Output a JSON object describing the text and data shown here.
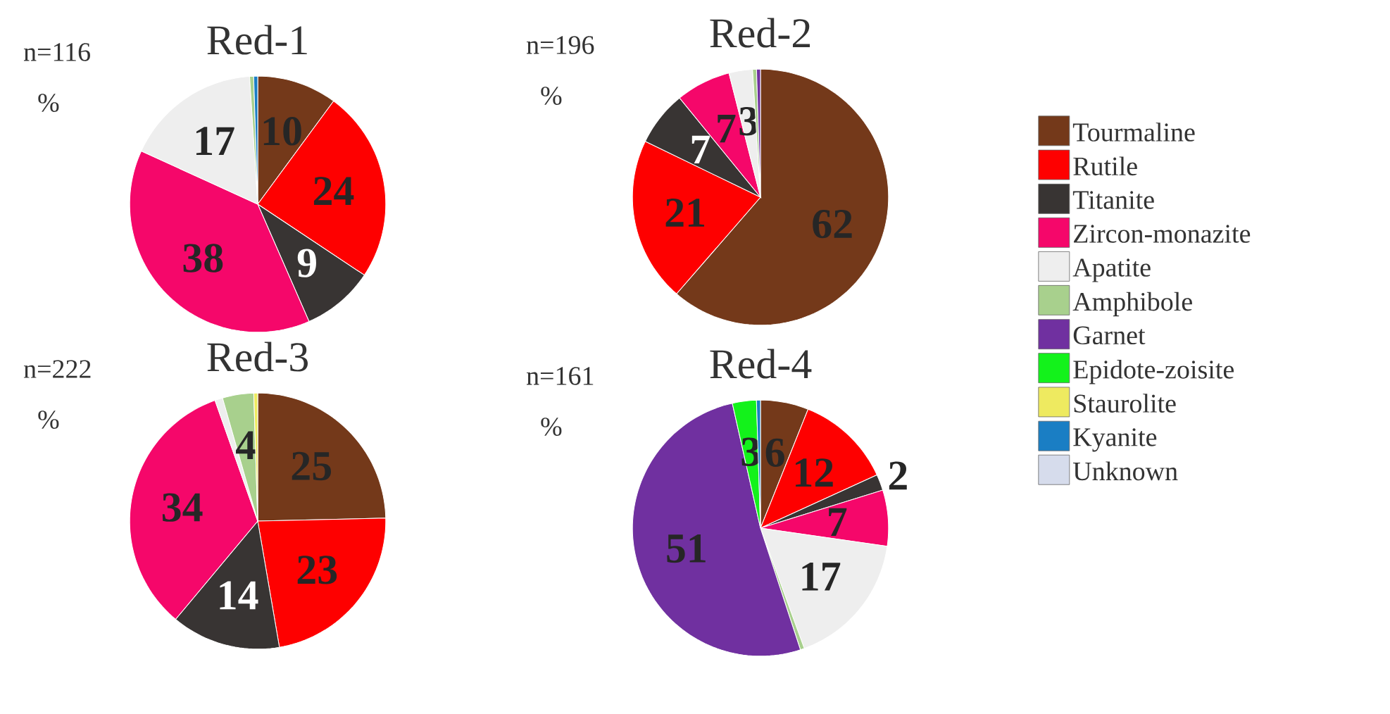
{
  "chart_data": [
    {
      "type": "pie",
      "title": "Red-1",
      "annotations": [
        "n=116",
        "%"
      ],
      "categories": [
        null,
        null,
        null,
        null,
        null,
        null,
        null,
        null,
        null,
        null,
        null
      ],
      "values": [
        10,
        24,
        9,
        38,
        17,
        0.5,
        0,
        0,
        0,
        0.5,
        0
      ],
      "value_labels": [
        "10",
        "24",
        "9",
        "38",
        "17",
        null,
        null,
        null,
        null,
        null,
        null
      ],
      "colors": [
        "#74391a",
        "#fe0000",
        "#383433",
        "#f5076a",
        "#eeeeee",
        "#a8d08d",
        "#7030a0",
        "#13f21b",
        "#eeea60",
        "#1a7ec4",
        "#d6dcec"
      ]
    },
    {
      "type": "pie",
      "title": "Red-2",
      "annotations": [
        "n=196",
        "%"
      ],
      "legend": "right",
      "categories": [
        "Tourmaline",
        "Rutile",
        "Titanite",
        "Zircon-monazite",
        "Apatite",
        "Amphibole",
        "Garnet",
        "Epidote-zoisite",
        "Staurolite",
        "Kyanite",
        "Unknown"
      ],
      "values": [
        62,
        21,
        7,
        7,
        3,
        0.5,
        0.5,
        0,
        0,
        0,
        0
      ],
      "value_labels": [
        "62",
        "21",
        "7",
        "7",
        "3",
        null,
        null,
        null,
        null,
        null,
        null
      ],
      "colors": [
        "#74391a",
        "#fe0000",
        "#383433",
        "#f5076a",
        "#eeeeee",
        "#a8d08d",
        "#7030a0",
        "#13f21b",
        "#eeea60",
        "#1a7ec4",
        "#d6dcec"
      ]
    },
    {
      "type": "pie",
      "title": "Red-3",
      "annotations": [
        "n=222",
        "%"
      ],
      "categories": [
        null,
        null,
        null,
        null,
        null,
        null,
        null,
        null,
        null,
        null,
        null
      ],
      "values": [
        25,
        23,
        14,
        34,
        1,
        4,
        0,
        0,
        0.5,
        0,
        0
      ],
      "value_labels": [
        "25",
        "23",
        "14",
        "34",
        null,
        "4",
        null,
        null,
        null,
        null,
        null
      ],
      "colors": [
        "#74391a",
        "#fe0000",
        "#383433",
        "#f5076a",
        "#eeeeee",
        "#a8d08d",
        "#7030a0",
        "#13f21b",
        "#eeea60",
        "#1a7ec4",
        "#d6dcec"
      ]
    },
    {
      "type": "pie",
      "title": "Red-4",
      "annotations": [
        "n=161",
        "%"
      ],
      "categories": [
        null,
        null,
        null,
        null,
        null,
        null,
        null,
        null,
        null,
        null,
        null
      ],
      "values": [
        6,
        12,
        2,
        7,
        17,
        0.5,
        51,
        3,
        0,
        0.5,
        0
      ],
      "value_labels": [
        "6",
        "12",
        "2",
        "7",
        "17",
        null,
        "51",
        "3",
        null,
        null,
        null
      ],
      "colors": [
        "#74391a",
        "#fe0000",
        "#383433",
        "#f5076a",
        "#eeeeee",
        "#a8d08d",
        "#7030a0",
        "#13f21b",
        "#eeea60",
        "#1a7ec4",
        "#d6dcec"
      ]
    }
  ]
}
